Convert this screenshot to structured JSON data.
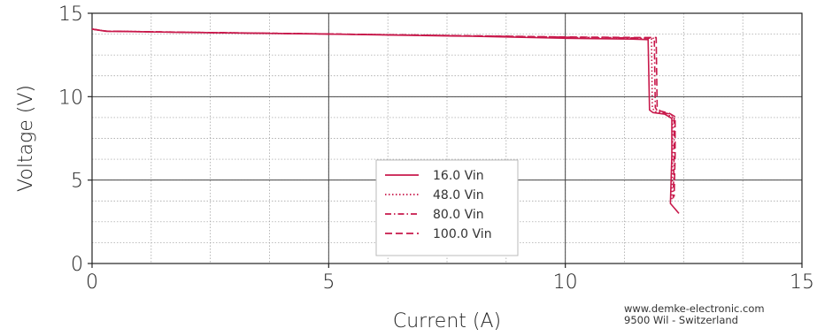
{
  "chart_data": {
    "type": "line",
    "title": "",
    "xlabel": "Current (A)",
    "ylabel": "Voltage (V)",
    "xlim": [
      0,
      15
    ],
    "ylim": [
      0,
      15
    ],
    "x_ticks": [
      0,
      5,
      10,
      15
    ],
    "y_ticks": [
      0,
      5,
      10,
      15
    ],
    "grid": true,
    "legend_position": "center-bottom",
    "line_color": "#c8194b",
    "series": [
      {
        "name": "16.0 Vin",
        "dash": "solid",
        "points": [
          [
            0,
            14.05
          ],
          [
            0.3,
            13.92
          ],
          [
            2,
            13.85
          ],
          [
            5,
            13.75
          ],
          [
            8,
            13.62
          ],
          [
            10,
            13.5
          ],
          [
            11.4,
            13.45
          ],
          [
            11.75,
            13.42
          ],
          [
            11.78,
            9.2
          ],
          [
            11.85,
            9.05
          ],
          [
            12.1,
            8.95
          ],
          [
            12.25,
            8.7
          ],
          [
            12.25,
            6.5
          ],
          [
            12.22,
            3.6
          ],
          [
            12.4,
            3.0
          ]
        ]
      },
      {
        "name": "48.0 Vin",
        "dash": "dotted",
        "points": [
          [
            0,
            14.05
          ],
          [
            0.3,
            13.93
          ],
          [
            2,
            13.86
          ],
          [
            5,
            13.76
          ],
          [
            8,
            13.64
          ],
          [
            10,
            13.55
          ],
          [
            11.5,
            13.5
          ],
          [
            11.82,
            13.48
          ],
          [
            11.84,
            9.3
          ],
          [
            11.9,
            9.1
          ],
          [
            12.15,
            8.95
          ],
          [
            12.27,
            8.75
          ],
          [
            12.27,
            6.5
          ],
          [
            12.25,
            3.8
          ]
        ]
      },
      {
        "name": "80.0 Vin",
        "dash": "dashdot",
        "points": [
          [
            0,
            14.05
          ],
          [
            0.3,
            13.93
          ],
          [
            2,
            13.86
          ],
          [
            5,
            13.76
          ],
          [
            8,
            13.65
          ],
          [
            10,
            13.57
          ],
          [
            11.5,
            13.52
          ],
          [
            11.88,
            13.5
          ],
          [
            11.9,
            9.35
          ],
          [
            11.95,
            9.12
          ],
          [
            12.18,
            8.98
          ],
          [
            12.3,
            8.8
          ],
          [
            12.3,
            6.5
          ],
          [
            12.28,
            3.9
          ]
        ]
      },
      {
        "name": "100.0 Vin",
        "dash": "dashed",
        "points": [
          [
            0,
            14.05
          ],
          [
            0.3,
            13.93
          ],
          [
            2,
            13.86
          ],
          [
            5,
            13.76
          ],
          [
            8,
            13.65
          ],
          [
            10,
            13.58
          ],
          [
            11.5,
            13.55
          ],
          [
            11.92,
            13.55
          ],
          [
            11.94,
            9.4
          ],
          [
            12.0,
            9.15
          ],
          [
            12.2,
            9.0
          ],
          [
            12.32,
            8.8
          ],
          [
            12.32,
            6.5
          ],
          [
            12.3,
            4.0
          ]
        ]
      }
    ]
  },
  "credit": {
    "line1": "www.demke-electronic.com",
    "line2": "9500 Wil - Switzerland"
  }
}
